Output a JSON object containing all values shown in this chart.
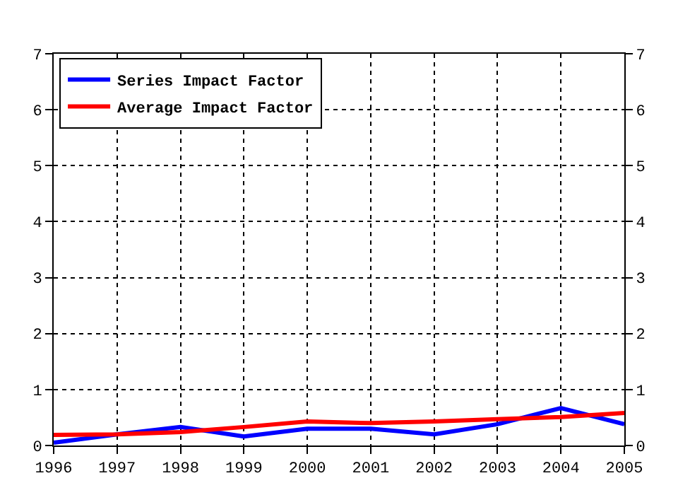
{
  "chart_data": {
    "type": "line",
    "x": [
      1996,
      1997,
      1998,
      1999,
      2000,
      2001,
      2002,
      2003,
      2004,
      2005
    ],
    "series": [
      {
        "name": "Series Impact Factor",
        "color": "#0000ff",
        "values": [
          0.05,
          0.2,
          0.33,
          0.16,
          0.3,
          0.3,
          0.2,
          0.38,
          0.67,
          0.38
        ]
      },
      {
        "name": "Average Impact Factor",
        "color": "#ff0000",
        "values": [
          0.19,
          0.2,
          0.24,
          0.33,
          0.43,
          0.4,
          0.43,
          0.47,
          0.51,
          0.58
        ]
      }
    ],
    "xlim": [
      1996,
      2005
    ],
    "xticks": [
      1996,
      1997,
      1998,
      1999,
      2000,
      2001,
      2002,
      2003,
      2004,
      2005
    ],
    "ylim": [
      0,
      7
    ],
    "yticks": [
      0,
      1,
      2,
      3,
      4,
      5,
      6,
      7
    ],
    "y2lim": [
      0,
      7
    ],
    "y2ticks": [
      0,
      1,
      2,
      3,
      4,
      5,
      6,
      7
    ],
    "grid": true,
    "legend": "top left",
    "marker": "none",
    "line_style": "solid"
  }
}
